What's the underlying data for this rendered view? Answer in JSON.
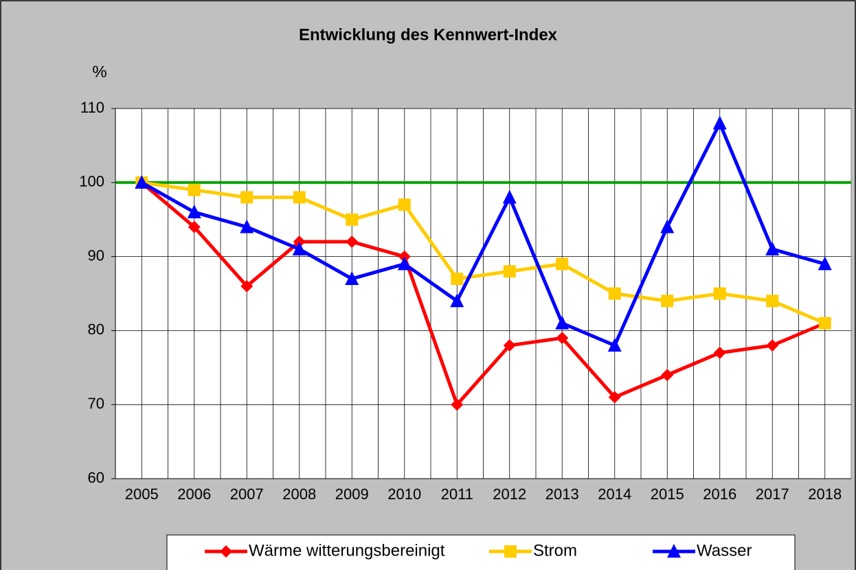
{
  "chart_data": {
    "type": "line",
    "title": "Entwicklung des Kennwert-Index",
    "y_label": "%",
    "categories": [
      "2005",
      "2006",
      "2007",
      "2008",
      "2009",
      "2010",
      "2011",
      "2012",
      "2013",
      "2014",
      "2015",
      "2016",
      "2017",
      "2018"
    ],
    "series": [
      {
        "name": "Wärme witterungsbereinigt",
        "color": "#ff0000",
        "marker": "diamond",
        "values": [
          100,
          94,
          86,
          92,
          92,
          90,
          70,
          78,
          79,
          71,
          74,
          77,
          78,
          81
        ]
      },
      {
        "name": "Strom",
        "color": "#ffcc00",
        "marker": "square",
        "values": [
          100,
          99,
          98,
          98,
          95,
          97,
          87,
          88,
          89,
          85,
          84,
          85,
          84,
          81
        ]
      },
      {
        "name": "Wasser",
        "color": "#0000ff",
        "marker": "triangle",
        "values": [
          100,
          96,
          94,
          91,
          87,
          89,
          84,
          98,
          81,
          78,
          94,
          108,
          91,
          89
        ]
      }
    ],
    "reference_line": {
      "value": 100,
      "color": "#00a000"
    },
    "ylim": [
      60,
      110
    ],
    "yticks": [
      60,
      70,
      80,
      90,
      100,
      110
    ],
    "grid": true,
    "legend": "bottom"
  }
}
